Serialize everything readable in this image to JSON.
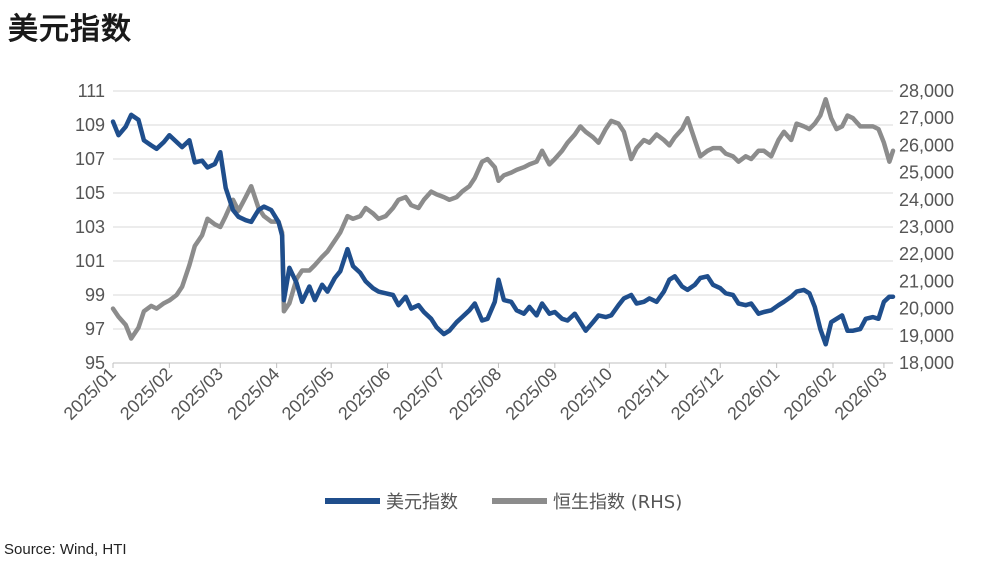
{
  "page": {
    "title": "美元指数",
    "source": "Source: Wind, HTI"
  },
  "chart_data": {
    "type": "line",
    "title": "美元指数",
    "x_ticks": [
      "2025/01",
      "2025/02",
      "2025/03",
      "2025/04",
      "2025/05",
      "2025/06",
      "2025/07",
      "2025/08",
      "2025/09",
      "2025/10",
      "2025/11",
      "2025/12",
      "2026/01",
      "2026/02",
      "2026/03"
    ],
    "y_left": {
      "min": 95,
      "max": 111,
      "ticks": [
        95,
        97,
        99,
        101,
        103,
        105,
        107,
        109,
        111
      ],
      "tick_labels": [
        "95",
        "97",
        "99",
        "101",
        "103",
        "105",
        "107",
        "109",
        "111"
      ]
    },
    "y_right": {
      "min": 18000,
      "max": 28000,
      "ticks": [
        18000,
        19000,
        20000,
        21000,
        22000,
        23000,
        24000,
        25000,
        26000,
        27000,
        28000
      ],
      "tick_labels": [
        "18,000",
        "19,000",
        "20,000",
        "21,000",
        "22,000",
        "23,000",
        "24,000",
        "25,000",
        "26,000",
        "27,000",
        "28,000"
      ]
    },
    "grid": true,
    "legend_position": "bottom",
    "series": [
      {
        "name": "美元指数",
        "axis": "left",
        "color": "#1f4e8c",
        "points": [
          [
            "2025-01-01",
            109.2
          ],
          [
            "2025-01-04",
            108.4
          ],
          [
            "2025-01-08",
            108.9
          ],
          [
            "2025-01-11",
            109.6
          ],
          [
            "2025-01-15",
            109.3
          ],
          [
            "2025-01-18",
            108.1
          ],
          [
            "2025-01-22",
            107.8
          ],
          [
            "2025-01-25",
            107.6
          ],
          [
            "2025-01-29",
            108.0
          ],
          [
            "2025-02-01",
            108.4
          ],
          [
            "2025-02-05",
            108.0
          ],
          [
            "2025-02-08",
            107.7
          ],
          [
            "2025-02-12",
            108.1
          ],
          [
            "2025-02-15",
            106.8
          ],
          [
            "2025-02-19",
            106.9
          ],
          [
            "2025-02-22",
            106.5
          ],
          [
            "2025-02-26",
            106.7
          ],
          [
            "2025-03-01",
            107.4
          ],
          [
            "2025-03-04",
            105.3
          ],
          [
            "2025-03-08",
            104.0
          ],
          [
            "2025-03-11",
            103.6
          ],
          [
            "2025-03-15",
            103.4
          ],
          [
            "2025-03-18",
            103.3
          ],
          [
            "2025-03-22",
            104.0
          ],
          [
            "2025-03-25",
            104.2
          ],
          [
            "2025-03-29",
            104.0
          ],
          [
            "2025-04-02",
            103.3
          ],
          [
            "2025-04-04",
            102.5
          ],
          [
            "2025-04-05",
            98.7
          ],
          [
            "2025-04-08",
            100.6
          ],
          [
            "2025-04-12",
            99.7
          ],
          [
            "2025-04-15",
            98.6
          ],
          [
            "2025-04-19",
            99.5
          ],
          [
            "2025-04-22",
            98.7
          ],
          [
            "2025-04-26",
            99.6
          ],
          [
            "2025-04-29",
            99.2
          ],
          [
            "2025-05-03",
            100.0
          ],
          [
            "2025-05-06",
            100.4
          ],
          [
            "2025-05-10",
            101.7
          ],
          [
            "2025-05-13",
            100.7
          ],
          [
            "2025-05-17",
            100.3
          ],
          [
            "2025-05-20",
            99.8
          ],
          [
            "2025-05-24",
            99.4
          ],
          [
            "2025-05-27",
            99.2
          ],
          [
            "2025-05-31",
            99.1
          ],
          [
            "2025-06-04",
            99.0
          ],
          [
            "2025-06-07",
            98.4
          ],
          [
            "2025-06-11",
            98.9
          ],
          [
            "2025-06-14",
            98.2
          ],
          [
            "2025-06-18",
            98.4
          ],
          [
            "2025-06-21",
            98.0
          ],
          [
            "2025-06-25",
            97.6
          ],
          [
            "2025-06-28",
            97.1
          ],
          [
            "2025-07-02",
            96.7
          ],
          [
            "2025-07-05",
            96.9
          ],
          [
            "2025-07-09",
            97.4
          ],
          [
            "2025-07-12",
            97.7
          ],
          [
            "2025-07-16",
            98.1
          ],
          [
            "2025-07-19",
            98.5
          ],
          [
            "2025-07-23",
            97.5
          ],
          [
            "2025-07-26",
            97.6
          ],
          [
            "2025-07-30",
            98.6
          ],
          [
            "2025-08-01",
            99.9
          ],
          [
            "2025-08-04",
            98.7
          ],
          [
            "2025-08-08",
            98.6
          ],
          [
            "2025-08-11",
            98.1
          ],
          [
            "2025-08-15",
            97.9
          ],
          [
            "2025-08-18",
            98.3
          ],
          [
            "2025-08-22",
            97.8
          ],
          [
            "2025-08-25",
            98.5
          ],
          [
            "2025-08-29",
            97.9
          ],
          [
            "2025-09-01",
            98.0
          ],
          [
            "2025-09-05",
            97.6
          ],
          [
            "2025-09-08",
            97.5
          ],
          [
            "2025-09-12",
            97.9
          ],
          [
            "2025-09-15",
            97.4
          ],
          [
            "2025-09-18",
            96.9
          ],
          [
            "2025-09-22",
            97.4
          ],
          [
            "2025-09-25",
            97.8
          ],
          [
            "2025-09-29",
            97.7
          ],
          [
            "2025-10-02",
            97.8
          ],
          [
            "2025-10-06",
            98.4
          ],
          [
            "2025-10-09",
            98.8
          ],
          [
            "2025-10-13",
            99.0
          ],
          [
            "2025-10-16",
            98.5
          ],
          [
            "2025-10-20",
            98.6
          ],
          [
            "2025-10-23",
            98.8
          ],
          [
            "2025-10-27",
            98.6
          ],
          [
            "2025-10-31",
            99.2
          ],
          [
            "2025-11-03",
            99.9
          ],
          [
            "2025-11-06",
            100.1
          ],
          [
            "2025-11-10",
            99.5
          ],
          [
            "2025-11-13",
            99.3
          ],
          [
            "2025-11-17",
            99.6
          ],
          [
            "2025-11-20",
            100.0
          ],
          [
            "2025-11-24",
            100.1
          ],
          [
            "2025-11-27",
            99.6
          ],
          [
            "2025-12-01",
            99.4
          ],
          [
            "2025-12-04",
            99.1
          ],
          [
            "2025-12-08",
            99.0
          ],
          [
            "2025-12-11",
            98.5
          ],
          [
            "2025-12-15",
            98.4
          ],
          [
            "2025-12-18",
            98.5
          ],
          [
            "2025-12-22",
            97.9
          ],
          [
            "2025-12-25",
            98.0
          ],
          [
            "2025-12-29",
            98.1
          ],
          [
            "2026-01-02",
            98.4
          ],
          [
            "2026-01-05",
            98.6
          ],
          [
            "2026-01-09",
            98.9
          ],
          [
            "2026-01-12",
            99.2
          ],
          [
            "2026-01-16",
            99.3
          ],
          [
            "2026-01-19",
            99.1
          ],
          [
            "2026-01-22",
            98.3
          ],
          [
            "2026-01-25",
            97.0
          ],
          [
            "2026-01-28",
            96.1
          ],
          [
            "2026-01-31",
            97.4
          ],
          [
            "2026-02-03",
            97.6
          ],
          [
            "2026-02-06",
            97.8
          ],
          [
            "2026-02-09",
            96.9
          ],
          [
            "2026-02-12",
            96.9
          ],
          [
            "2026-02-16",
            97.0
          ],
          [
            "2026-02-19",
            97.6
          ],
          [
            "2026-02-23",
            97.7
          ],
          [
            "2026-02-26",
            97.6
          ],
          [
            "2026-03-01",
            98.6
          ],
          [
            "2026-03-04",
            98.9
          ],
          [
            "2026-03-06",
            98.9
          ]
        ]
      },
      {
        "name": "恒生指数 (RHS)",
        "axis": "right",
        "color": "#8c8c8c",
        "points": [
          [
            "2025-01-01",
            20000
          ],
          [
            "2025-01-04",
            19700
          ],
          [
            "2025-01-08",
            19400
          ],
          [
            "2025-01-11",
            18900
          ],
          [
            "2025-01-15",
            19300
          ],
          [
            "2025-01-18",
            19900
          ],
          [
            "2025-01-22",
            20100
          ],
          [
            "2025-01-25",
            20000
          ],
          [
            "2025-01-29",
            20200
          ],
          [
            "2025-02-01",
            20300
          ],
          [
            "2025-02-05",
            20500
          ],
          [
            "2025-02-08",
            20800
          ],
          [
            "2025-02-12",
            21600
          ],
          [
            "2025-02-15",
            22300
          ],
          [
            "2025-02-19",
            22700
          ],
          [
            "2025-02-22",
            23300
          ],
          [
            "2025-02-26",
            23100
          ],
          [
            "2025-03-01",
            23000
          ],
          [
            "2025-03-04",
            23400
          ],
          [
            "2025-03-08",
            24000
          ],
          [
            "2025-03-11",
            23600
          ],
          [
            "2025-03-15",
            24100
          ],
          [
            "2025-03-18",
            24500
          ],
          [
            "2025-03-22",
            23700
          ],
          [
            "2025-03-25",
            23400
          ],
          [
            "2025-03-29",
            23200
          ],
          [
            "2025-04-02",
            23200
          ],
          [
            "2025-04-04",
            22800
          ],
          [
            "2025-04-05",
            19900
          ],
          [
            "2025-04-08",
            20200
          ],
          [
            "2025-04-12",
            21100
          ],
          [
            "2025-04-15",
            21400
          ],
          [
            "2025-04-19",
            21400
          ],
          [
            "2025-04-22",
            21600
          ],
          [
            "2025-04-26",
            21900
          ],
          [
            "2025-04-29",
            22100
          ],
          [
            "2025-05-03",
            22500
          ],
          [
            "2025-05-06",
            22800
          ],
          [
            "2025-05-10",
            23400
          ],
          [
            "2025-05-13",
            23300
          ],
          [
            "2025-05-17",
            23400
          ],
          [
            "2025-05-20",
            23700
          ],
          [
            "2025-05-24",
            23500
          ],
          [
            "2025-05-27",
            23300
          ],
          [
            "2025-05-31",
            23400
          ],
          [
            "2025-06-04",
            23700
          ],
          [
            "2025-06-07",
            24000
          ],
          [
            "2025-06-11",
            24100
          ],
          [
            "2025-06-14",
            23800
          ],
          [
            "2025-06-18",
            23700
          ],
          [
            "2025-06-21",
            24000
          ],
          [
            "2025-06-25",
            24300
          ],
          [
            "2025-06-28",
            24200
          ],
          [
            "2025-07-02",
            24100
          ],
          [
            "2025-07-05",
            24000
          ],
          [
            "2025-07-09",
            24100
          ],
          [
            "2025-07-12",
            24300
          ],
          [
            "2025-07-16",
            24500
          ],
          [
            "2025-07-19",
            24800
          ],
          [
            "2025-07-23",
            25400
          ],
          [
            "2025-07-26",
            25500
          ],
          [
            "2025-07-30",
            25200
          ],
          [
            "2025-08-01",
            24700
          ],
          [
            "2025-08-04",
            24900
          ],
          [
            "2025-08-08",
            25000
          ],
          [
            "2025-08-11",
            25100
          ],
          [
            "2025-08-15",
            25200
          ],
          [
            "2025-08-18",
            25300
          ],
          [
            "2025-08-22",
            25400
          ],
          [
            "2025-08-25",
            25800
          ],
          [
            "2025-08-29",
            25300
          ],
          [
            "2025-09-01",
            25500
          ],
          [
            "2025-09-05",
            25800
          ],
          [
            "2025-09-08",
            26100
          ],
          [
            "2025-09-12",
            26400
          ],
          [
            "2025-09-15",
            26700
          ],
          [
            "2025-09-18",
            26500
          ],
          [
            "2025-09-22",
            26300
          ],
          [
            "2025-09-25",
            26100
          ],
          [
            "2025-09-29",
            26600
          ],
          [
            "2025-10-02",
            26900
          ],
          [
            "2025-10-06",
            26800
          ],
          [
            "2025-10-09",
            26500
          ],
          [
            "2025-10-13",
            25500
          ],
          [
            "2025-10-16",
            25900
          ],
          [
            "2025-10-20",
            26200
          ],
          [
            "2025-10-23",
            26100
          ],
          [
            "2025-10-27",
            26400
          ],
          [
            "2025-10-31",
            26200
          ],
          [
            "2025-11-03",
            26000
          ],
          [
            "2025-11-06",
            26300
          ],
          [
            "2025-11-10",
            26600
          ],
          [
            "2025-11-13",
            27000
          ],
          [
            "2025-11-17",
            26200
          ],
          [
            "2025-11-20",
            25600
          ],
          [
            "2025-11-24",
            25800
          ],
          [
            "2025-11-27",
            25900
          ],
          [
            "2025-12-01",
            25900
          ],
          [
            "2025-12-04",
            25700
          ],
          [
            "2025-12-08",
            25600
          ],
          [
            "2025-12-11",
            25400
          ],
          [
            "2025-12-15",
            25600
          ],
          [
            "2025-12-18",
            25500
          ],
          [
            "2025-12-22",
            25800
          ],
          [
            "2025-12-25",
            25800
          ],
          [
            "2025-12-29",
            25600
          ],
          [
            "2026-01-02",
            26200
          ],
          [
            "2026-01-05",
            26500
          ],
          [
            "2026-01-09",
            26200
          ],
          [
            "2026-01-12",
            26800
          ],
          [
            "2026-01-16",
            26700
          ],
          [
            "2026-01-19",
            26600
          ],
          [
            "2026-01-22",
            26800
          ],
          [
            "2026-01-25",
            27100
          ],
          [
            "2026-01-28",
            27700
          ],
          [
            "2026-01-31",
            27000
          ],
          [
            "2026-02-03",
            26600
          ],
          [
            "2026-02-06",
            26700
          ],
          [
            "2026-02-09",
            27100
          ],
          [
            "2026-02-12",
            27000
          ],
          [
            "2026-02-16",
            26700
          ],
          [
            "2026-02-19",
            26700
          ],
          [
            "2026-02-23",
            26700
          ],
          [
            "2026-02-26",
            26600
          ],
          [
            "2026-03-01",
            26100
          ],
          [
            "2026-03-04",
            25400
          ],
          [
            "2026-03-06",
            25800
          ]
        ]
      }
    ]
  }
}
